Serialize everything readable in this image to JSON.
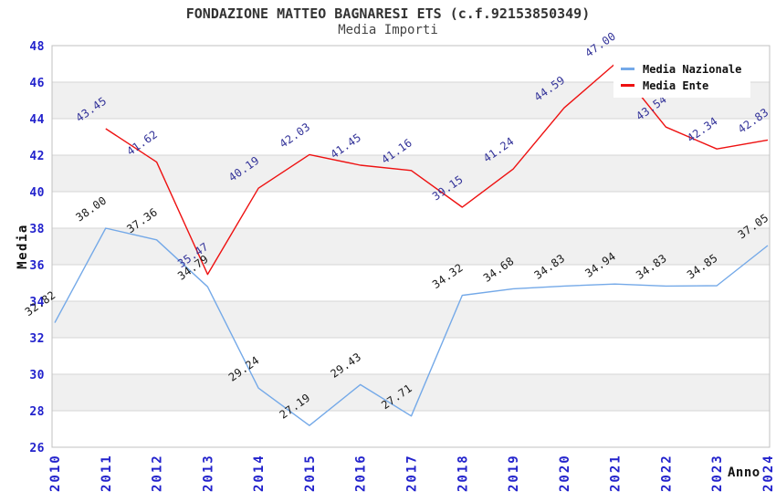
{
  "page": {
    "background": "#FFFFFF"
  },
  "chart_data": {
    "type": "line",
    "title": "FONDAZIONE MATTEO BAGNARESI ETS (c.f.92153850349)",
    "subtitle": "Media Importi",
    "xlabel": "Anno",
    "ylabel": "Media",
    "ylim": [
      26,
      48
    ],
    "ytick_step": 2,
    "grid": "horizontal-bands",
    "legend_position": "top-right",
    "categories": [
      "2010",
      "2011",
      "2012",
      "2013",
      "2014",
      "2015",
      "2016",
      "2017",
      "2018",
      "2019",
      "2020",
      "2021",
      "2022",
      "2023",
      "2024"
    ],
    "series": [
      {
        "name": "Media Nazionale",
        "color": "#74A9E8",
        "label_color": "#1A1A1A",
        "values": [
          32.82,
          38.0,
          37.36,
          34.79,
          29.24,
          27.19,
          29.43,
          27.71,
          34.32,
          34.68,
          34.83,
          34.94,
          34.83,
          34.85,
          37.05
        ]
      },
      {
        "name": "Media Ente",
        "color": "#EE1111",
        "label_color": "#333399",
        "values": [
          null,
          43.45,
          41.62,
          35.47,
          40.19,
          42.03,
          41.45,
          41.16,
          39.15,
          41.24,
          44.59,
          47.0,
          43.54,
          42.34,
          42.83
        ]
      }
    ],
    "colors": {
      "axis_text": "#2222CC",
      "band": "#F0F0F0",
      "grid_line": "#D6D6D6",
      "plot_border": "#C0C0C0"
    }
  }
}
